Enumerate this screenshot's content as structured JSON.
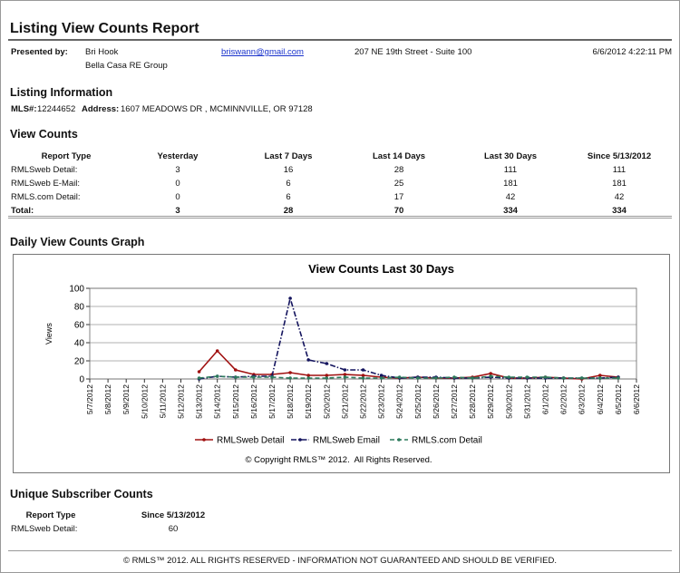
{
  "header": {
    "title": "Listing View Counts Report",
    "presented_by_label": "Presented by:",
    "agent": "Bri Hook",
    "office": "Bella Casa RE Group",
    "email": "briswann@gmail.com",
    "address": "207 NE 19th Street - Suite 100",
    "datetime": "6/6/2012 4:22:11 PM"
  },
  "listing": {
    "heading": "Listing Information",
    "mls_label": "MLS#:",
    "mls": "12244652",
    "address_label": "Address:",
    "address": "1607 MEADOWS DR , MCMINNVILLE, OR 97128"
  },
  "view_counts": {
    "heading": "View Counts",
    "columns": [
      "Report Type",
      "Yesterday",
      "Last 7 Days",
      "Last 14 Days",
      "Last 30 Days",
      "Since 5/13/2012"
    ],
    "rows": [
      [
        "RMLSweb Detail:",
        3,
        16,
        28,
        111,
        111
      ],
      [
        "RMLSweb E-Mail:",
        0,
        6,
        25,
        181,
        181
      ],
      [
        "RMLS.com Detail:",
        0,
        6,
        17,
        42,
        42
      ],
      [
        "Total:",
        3,
        28,
        70,
        334,
        334
      ]
    ]
  },
  "graph_heading": "Daily View Counts Graph",
  "chart_data": {
    "type": "line",
    "title": "View Counts Last 30 Days",
    "y_label": "Views",
    "categories": [
      "5/7/2012",
      "5/8/2012",
      "5/9/2012",
      "5/10/2012",
      "5/11/2012",
      "5/12/2012",
      "5/13/2012",
      "5/14/2012",
      "5/15/2012",
      "5/16/2012",
      "5/17/2012",
      "5/18/2012",
      "5/19/2012",
      "5/20/2012",
      "5/21/2012",
      "5/22/2012",
      "5/23/2012",
      "5/24/2012",
      "5/25/2012",
      "5/26/2012",
      "5/27/2012",
      "5/28/2012",
      "5/29/2012",
      "5/30/2012",
      "5/31/2012",
      "6/1/2012",
      "6/2/2012",
      "6/3/2012",
      "6/4/2012",
      "6/5/2012",
      "6/6/2012"
    ],
    "series": [
      {
        "name": "RMLSweb Detail",
        "color": "#a01010",
        "dash": "solid",
        "values": [
          null,
          null,
          null,
          null,
          null,
          null,
          8,
          31,
          10,
          5,
          5,
          7,
          4,
          4,
          5,
          4,
          2,
          1,
          2,
          1,
          1,
          2,
          6,
          1,
          1,
          2,
          1,
          0,
          4,
          2,
          null
        ]
      },
      {
        "name": "RMLSweb Email",
        "color": "#14145e",
        "dash": "dashdot",
        "values": [
          null,
          null,
          null,
          null,
          null,
          null,
          0,
          3,
          2,
          3,
          3,
          89,
          21,
          17,
          10,
          10,
          4,
          1,
          2,
          2,
          1,
          1,
          2,
          1,
          1,
          1,
          1,
          1,
          1,
          2,
          null
        ]
      },
      {
        "name": "RMLS.com Detail",
        "color": "#2d7a5c",
        "dash": "dash",
        "values": [
          null,
          null,
          null,
          null,
          null,
          null,
          1,
          3,
          2,
          2,
          2,
          1,
          1,
          1,
          2,
          1,
          1,
          2,
          1,
          1,
          2,
          1,
          3,
          2,
          2,
          2,
          1,
          1,
          1,
          1,
          null
        ]
      }
    ],
    "ylim": [
      0,
      100
    ],
    "yticks": [
      0,
      20,
      40,
      60,
      80,
      100
    ],
    "grid": true,
    "legend": "bottom",
    "footnote": "© Copyright RMLS™ 2012.  All Rights Reserved."
  },
  "unique": {
    "heading": "Unique Subscriber Counts",
    "columns": [
      "Report Type",
      "Since 5/13/2012"
    ],
    "rows": [
      [
        "RMLSweb Detail:",
        60
      ]
    ]
  },
  "footer": "© RMLS™ 2012. ALL RIGHTS RESERVED - INFORMATION NOT GUARANTEED AND SHOULD BE VERIFIED."
}
